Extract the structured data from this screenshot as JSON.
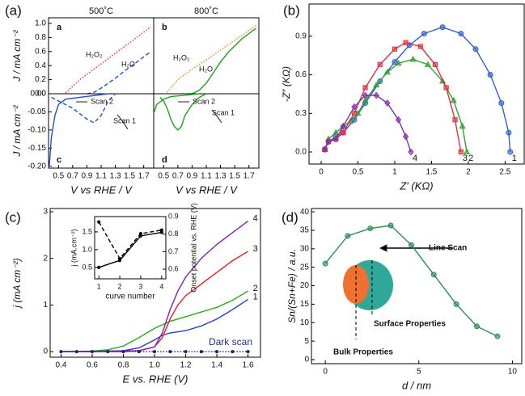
{
  "chart_data": [
    {
      "type": "line",
      "panel_label": "(a)",
      "title": "500˚C",
      "letter": "a",
      "ylabel": "J / mA cm⁻²",
      "annotations": [
        "H₂O₂",
        "H₂O"
      ],
      "xlim": [
        0.36,
        1.84
      ],
      "ylim": [
        0,
        1.08
      ],
      "yticks": [
        {
          "value": 0,
          "label": "0.0"
        },
        0.2,
        0.4,
        0.6,
        0.8,
        {
          "value": 1,
          "label": "1.0"
        }
      ],
      "series": [
        {
          "color": "#e03030",
          "dash": "dotted",
          "x": [
            0.6,
            0.8,
            1.0,
            1.2,
            1.4,
            1.6,
            1.8
          ],
          "values": [
            0.01,
            0.2,
            0.35,
            0.5,
            0.65,
            0.8,
            0.95
          ]
        },
        {
          "color": "#2050c8",
          "dash": "dashed",
          "x": [
            0.9,
            1.0,
            1.1,
            1.2,
            1.3,
            1.4,
            1.6,
            1.8
          ],
          "values": [
            0.0,
            0.02,
            0.08,
            0.15,
            0.22,
            0.3,
            0.45,
            0.6
          ]
        }
      ]
    },
    {
      "type": "line",
      "title": "800˚C",
      "letter": "b",
      "annotations": [
        "H₂O₂",
        "H₂O"
      ],
      "xlim": [
        0.36,
        1.84
      ],
      "ylim": [
        0,
        1.08
      ],
      "series": [
        {
          "color": "#f08020",
          "dash": "dotted",
          "x": [
            0.55,
            0.7,
            0.9,
            1.1,
            1.3,
            1.5,
            1.7,
            1.8
          ],
          "values": [
            0.02,
            0.2,
            0.35,
            0.48,
            0.62,
            0.76,
            0.9,
            0.97
          ]
        },
        {
          "color": "#20a020",
          "dash": "solid",
          "x": [
            0.9,
            1.0,
            1.1,
            1.2,
            1.3,
            1.4,
            1.6,
            1.8
          ],
          "values": [
            0.0,
            0.05,
            0.15,
            0.3,
            0.45,
            0.58,
            0.78,
            0.93
          ]
        }
      ]
    },
    {
      "type": "line",
      "letter": "c",
      "xlabel": "V vs RHE / V",
      "ylabel": "J / mA cm⁻²",
      "annotations": [
        "Scan 2",
        "Scan 1"
      ],
      "xlim": [
        0.36,
        1.84
      ],
      "ylim": [
        -0.205,
        0
      ],
      "xticks": [
        0.5,
        0.7,
        0.9,
        1.1,
        1.3,
        1.5,
        1.7
      ],
      "yticks": [
        {
          "value": -0.2,
          "label": "-0.20"
        },
        -0.15,
        {
          "value": -0.1,
          "label": "-0.10"
        },
        -0.05,
        {
          "value": 0,
          "label": "0.00"
        }
      ],
      "series": [
        {
          "color": "#2050c8",
          "dash": "dashed",
          "x": [
            0.4,
            0.5,
            0.6,
            0.7,
            0.8,
            0.9,
            1.0,
            1.1,
            1.2,
            1.3
          ],
          "values": [
            -0.01,
            -0.02,
            -0.03,
            -0.04,
            -0.055,
            -0.07,
            -0.08,
            -0.06,
            -0.02,
            0
          ]
        },
        {
          "color": "#2050c8",
          "dash": "solid",
          "x": [
            0.37,
            0.4,
            0.45,
            0.5,
            0.6,
            0.8,
            1.0,
            1.2
          ],
          "values": [
            -0.2,
            -0.12,
            -0.06,
            -0.03,
            -0.015,
            -0.01,
            -0.005,
            0
          ]
        }
      ]
    },
    {
      "type": "line",
      "letter": "d",
      "xlabel": "V vs RHE / V",
      "annotations": [
        "Scan 2",
        "Scan 1"
      ],
      "xlim": [
        0.36,
        1.84
      ],
      "ylim": [
        -0.205,
        0
      ],
      "xticks": [
        0.5,
        0.7,
        0.9,
        1.1,
        1.3,
        1.5,
        1.7
      ],
      "series": [
        {
          "color": "#20a020",
          "dash": "solid",
          "x": [
            0.45,
            0.5,
            0.55,
            0.6,
            0.65,
            0.7,
            0.75,
            0.8,
            0.9,
            1.0,
            1.1
          ],
          "values": [
            -0.01,
            -0.02,
            -0.04,
            -0.07,
            -0.09,
            -0.1,
            -0.09,
            -0.06,
            -0.03,
            -0.01,
            0
          ]
        },
        {
          "color": "#20a020",
          "dash": "solid",
          "x": [
            0.37,
            0.4,
            0.5,
            0.6,
            0.8,
            1.0
          ],
          "values": [
            -0.05,
            -0.03,
            -0.015,
            -0.008,
            -0.004,
            0
          ]
        }
      ]
    },
    {
      "type": "line",
      "panel_label": "(b)",
      "xlabel": "Z′ (KΩ)",
      "ylabel": "-Z″ (KΩ)",
      "xlim": [
        -0.165,
        2.76
      ],
      "ylim": [
        -0.094,
        1.15
      ],
      "xticks": [
        0,
        0.5,
        1,
        1.5,
        2,
        2.5
      ],
      "yticks": [
        {
          "value": 0,
          "label": "0.0"
        },
        0.3,
        0.6,
        0.9
      ],
      "series": [
        {
          "name": "1",
          "color": "#3060d0",
          "dash": "solid",
          "marker": "circle",
          "x": [
            0.05,
            0.1,
            0.2,
            0.3,
            0.45,
            0.6,
            0.8,
            1.0,
            1.2,
            1.4,
            1.65,
            1.9,
            2.1,
            2.3,
            2.45,
            2.55,
            2.57
          ],
          "values": [
            0.02,
            0.08,
            0.12,
            0.15,
            0.25,
            0.38,
            0.55,
            0.7,
            0.83,
            0.92,
            0.97,
            0.92,
            0.8,
            0.6,
            0.38,
            0.15,
            0
          ]
        },
        {
          "name": "2",
          "color": "#30a030",
          "dash": "solid",
          "marker": "triangle",
          "x": [
            0.05,
            0.1,
            0.2,
            0.3,
            0.4,
            0.5,
            0.6,
            0.75,
            0.9,
            1.05,
            1.25,
            1.45,
            1.65,
            1.8,
            1.92,
            1.98
          ],
          "values": [
            0.02,
            0.1,
            0.15,
            0.2,
            0.24,
            0.3,
            0.4,
            0.52,
            0.62,
            0.69,
            0.72,
            0.68,
            0.55,
            0.4,
            0.2,
            0
          ]
        },
        {
          "name": "3",
          "color": "#e03040",
          "dash": "solid",
          "marker": "square",
          "x": [
            0.05,
            0.1,
            0.2,
            0.3,
            0.45,
            0.6,
            0.8,
            1.0,
            1.15,
            1.35,
            1.55,
            1.7,
            1.82,
            1.9
          ],
          "values": [
            0.02,
            0.08,
            0.1,
            0.15,
            0.3,
            0.5,
            0.68,
            0.8,
            0.85,
            0.82,
            0.68,
            0.5,
            0.25,
            0
          ]
        },
        {
          "name": "4",
          "color": "#8030b0",
          "dash": "solid",
          "marker": "diamond",
          "x": [
            0.05,
            0.1,
            0.2,
            0.3,
            0.45,
            0.6,
            0.75,
            0.9,
            1.05,
            1.15,
            1.22
          ],
          "values": [
            0.02,
            0.08,
            0.1,
            0.2,
            0.35,
            0.44,
            0.44,
            0.38,
            0.25,
            0.12,
            0
          ]
        }
      ]
    },
    {
      "type": "line",
      "panel_label": "(c)",
      "xlabel": "E vs. RHE (V)",
      "ylabel": "j (mA cm⁻²)",
      "annotations": [
        "Dark scan"
      ],
      "xlim": [
        0.33,
        1.68
      ],
      "ylim": [
        -0.12,
        3.07
      ],
      "xticks": [
        0.4,
        0.6,
        0.8,
        {
          "value": 1,
          "label": "1.0"
        },
        1.2,
        1.4,
        1.6
      ],
      "yticks": [
        0,
        1,
        2,
        3
      ],
      "series": [
        {
          "name": "1",
          "color": "#2040c8",
          "dash": "solid",
          "x": [
            0.4,
            0.6,
            0.8,
            0.9,
            1.0,
            1.05,
            1.1,
            1.2,
            1.3,
            1.4,
            1.5,
            1.6
          ],
          "values": [
            0,
            0,
            0.02,
            0.08,
            0.25,
            0.35,
            0.4,
            0.45,
            0.55,
            0.7,
            0.9,
            1.12
          ]
        },
        {
          "name": "2",
          "color": "#20b020",
          "dash": "solid",
          "x": [
            0.4,
            0.6,
            0.7,
            0.8,
            0.9,
            1.0,
            1.1,
            1.2,
            1.3,
            1.4,
            1.5,
            1.6
          ],
          "values": [
            0,
            0.01,
            0.04,
            0.12,
            0.3,
            0.5,
            0.65,
            0.75,
            0.85,
            0.95,
            1.1,
            1.3
          ]
        },
        {
          "name": "3",
          "color": "#e02020",
          "dash": "solid",
          "x": [
            0.4,
            0.8,
            0.9,
            1.0,
            1.05,
            1.1,
            1.15,
            1.2,
            1.3,
            1.4,
            1.5,
            1.6
          ],
          "values": [
            0,
            0,
            0.02,
            0.1,
            0.3,
            0.7,
            1.0,
            1.2,
            1.45,
            1.7,
            1.95,
            2.15
          ]
        },
        {
          "name": "4",
          "color": "#8020b0",
          "dash": "solid",
          "x": [
            0.4,
            0.9,
            1.0,
            1.05,
            1.1,
            1.15,
            1.2,
            1.3,
            1.4,
            1.5,
            1.6
          ],
          "values": [
            0,
            0.02,
            0.1,
            0.4,
            0.9,
            1.3,
            1.6,
            2.0,
            2.3,
            2.55,
            2.8
          ]
        },
        {
          "color": "#202080",
          "dash": "dotted",
          "marker": "dot",
          "x": [
            0.4,
            0.5,
            0.6,
            0.7,
            0.8,
            0.9,
            1.0,
            1.1,
            1.2,
            1.3,
            1.4,
            1.5,
            1.6
          ],
          "values": [
            0,
            0,
            0,
            0,
            0,
            0,
            0,
            0,
            0,
            0,
            0,
            0,
            0
          ]
        }
      ]
    },
    {
      "type": "line",
      "xlabel": "curve number",
      "ylabel": "j (mA.cm⁻²)",
      "y2label": "Onset potential vs. RHE (V)",
      "xlim": [
        0.8,
        4.2
      ],
      "ylim": [
        0.18,
        1.93
      ],
      "y2lim": [
        0.545,
        0.9
      ],
      "xticks": [
        1,
        2,
        3,
        4
      ],
      "yticks": [
        0.5,
        {
          "value": 1,
          "label": "1.0"
        },
        1.5
      ],
      "y2ticks": [
        0.6,
        0.7,
        0.8,
        0.9
      ],
      "series": [
        {
          "color": "#000000",
          "dash": "dashed",
          "marker": "dot",
          "x": [
            1,
            2,
            3,
            4
          ],
          "values": [
            1.78,
            0.75,
            1.45,
            1.55
          ]
        },
        {
          "color": "#000000",
          "dash": "solid",
          "marker": "dot",
          "axis": "y2",
          "x": [
            1,
            2,
            3,
            4
          ],
          "values": [
            0.61,
            0.65,
            0.79,
            0.81
          ]
        }
      ]
    },
    {
      "type": "line",
      "panel_label": "(d)",
      "xlabel": "d / nm",
      "ylabel": "Sn/(Sn+Fe) / a.u.",
      "annotations": [
        "Line Scan",
        "Surface Properties",
        "Bulk Properties"
      ],
      "xlim": [
        -0.74,
        10.5
      ],
      "ylim": [
        -1.1,
        40.9
      ],
      "xticks": [
        0,
        5,
        10
      ],
      "yticks": [
        0,
        5,
        10,
        15,
        20,
        25,
        30,
        35,
        40
      ],
      "series": [
        {
          "color": "#2e8b57",
          "dash": "solid",
          "marker": "circle",
          "x": [
            0,
            1.2,
            2.4,
            3.5,
            4.6,
            5.8,
            7,
            8.1,
            9.2
          ],
          "values": [
            26,
            33.5,
            35.5,
            36.3,
            31,
            23,
            15,
            9,
            6.3
          ]
        }
      ]
    }
  ]
}
